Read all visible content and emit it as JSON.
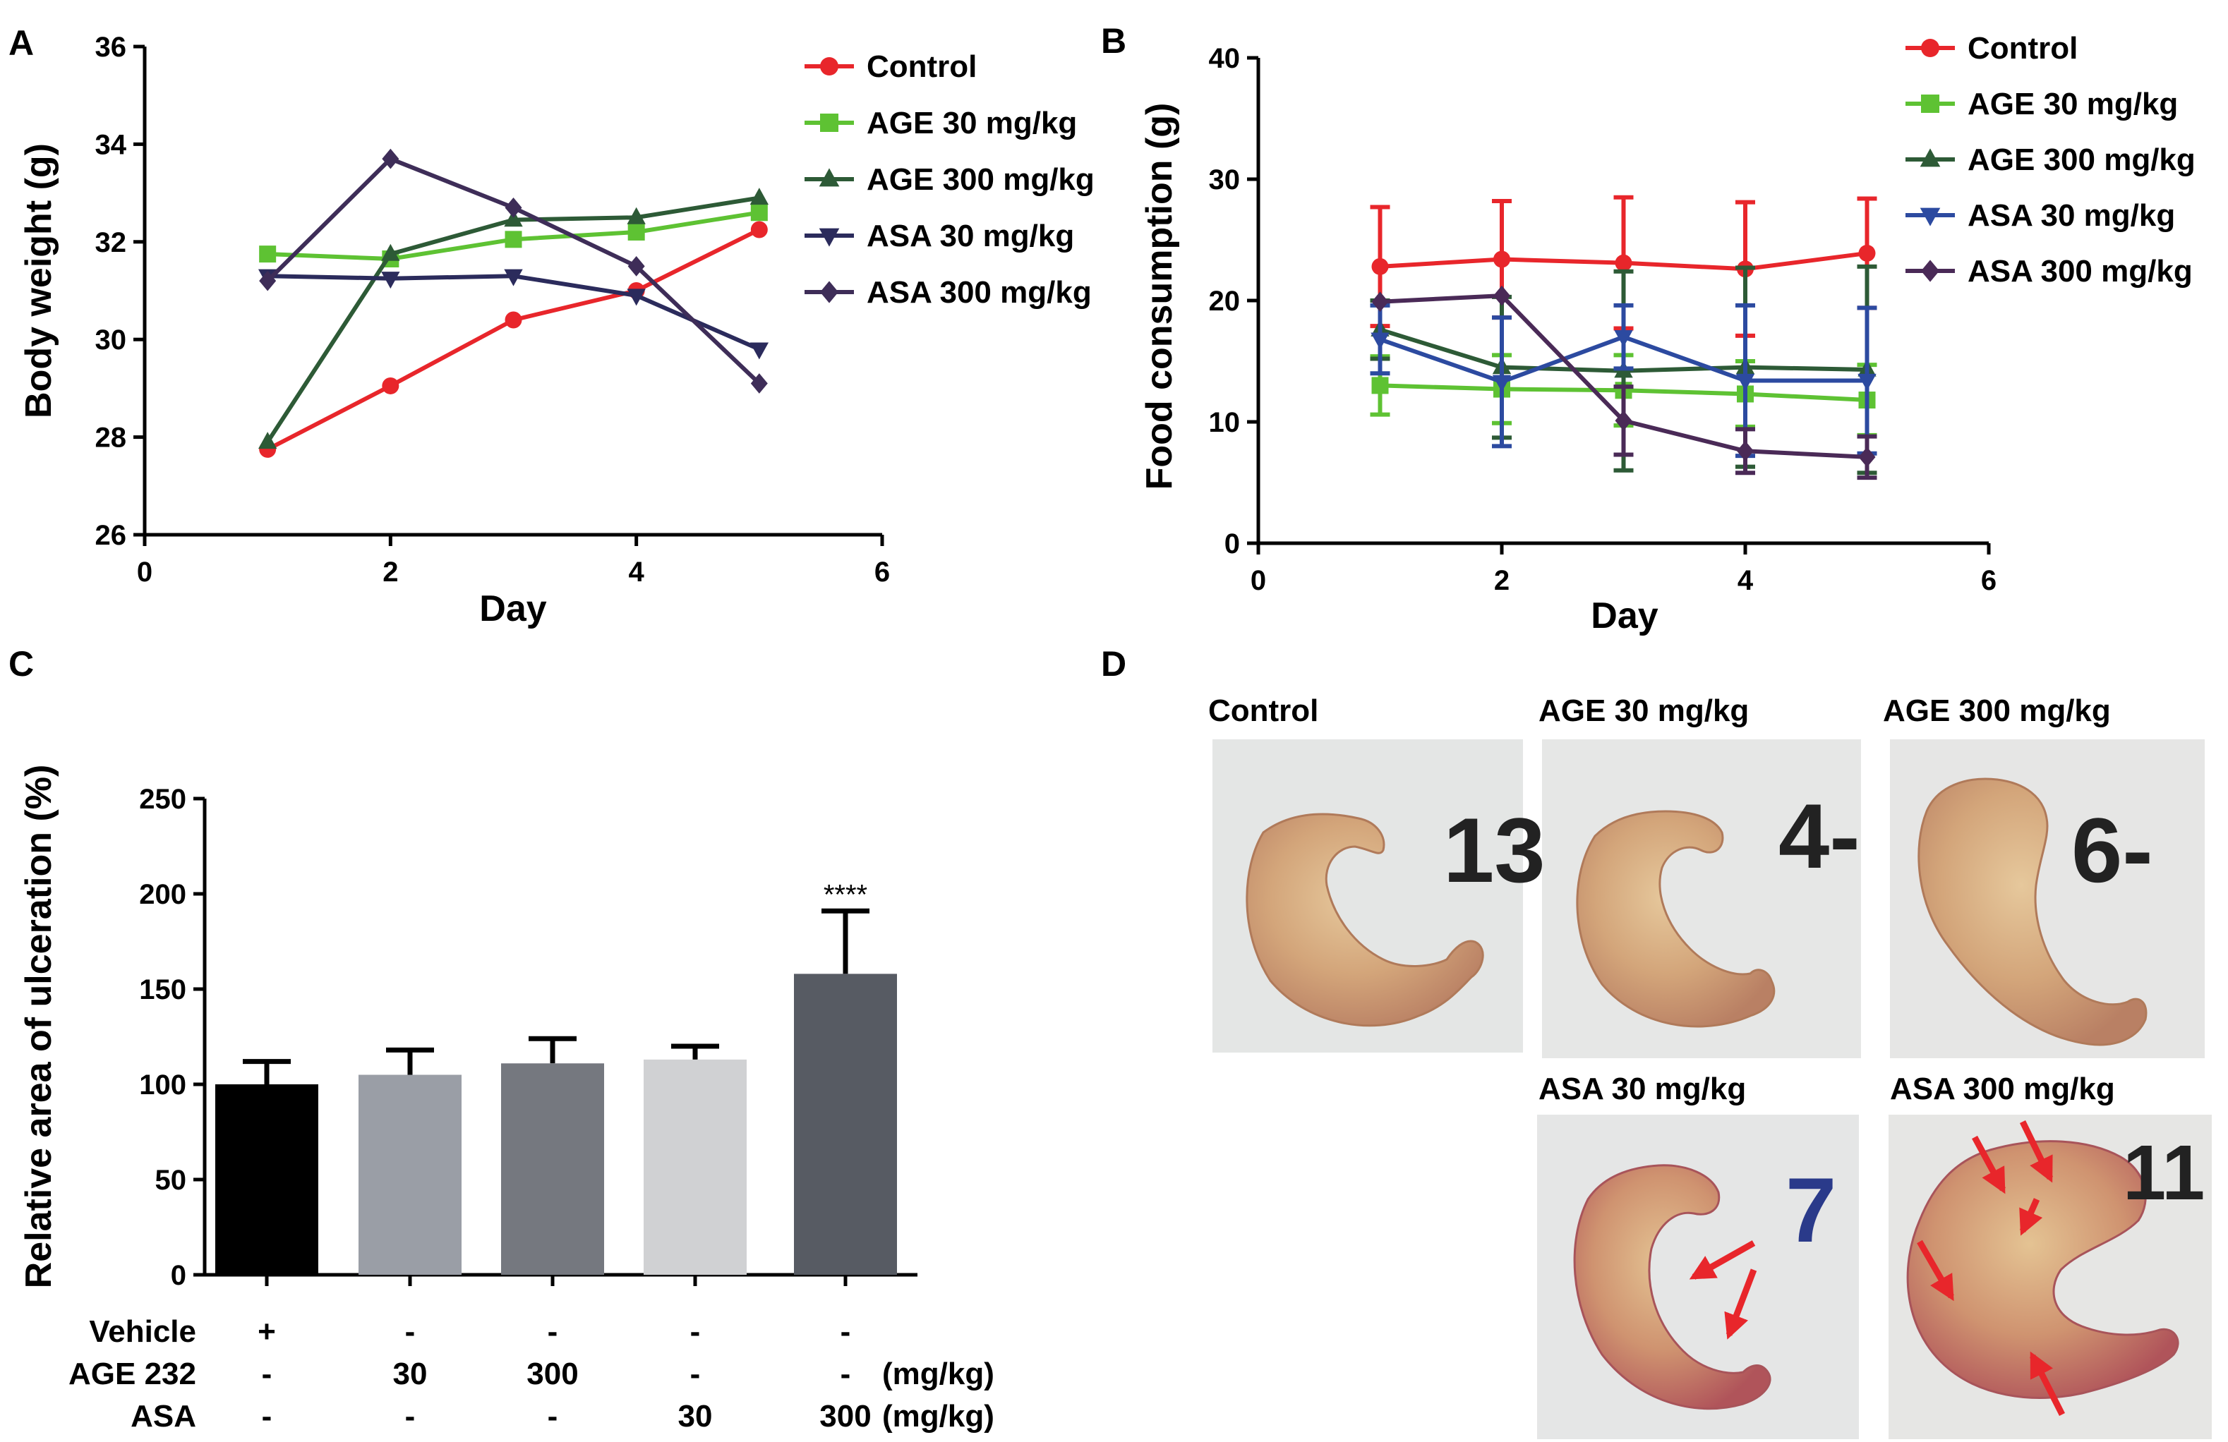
{
  "figure": {
    "panel_letters": [
      "A",
      "B",
      "C",
      "D"
    ]
  },
  "colors": {
    "Control": "#e8262b",
    "AGE 30 mg/kg": "#5ec233",
    "AGE 300 mg/kg": "#2d5a36",
    "ASA 30 mg/kg": "#2c4aa0",
    "ASA 300 mg/kg": "#4a2a57",
    "ASA 30 mg/kg (panel A)": "#2b2b5c",
    "ASA 300 mg/kg (panel A)": "#3e2d58",
    "bars": [
      "#000000",
      "#9a9ea6",
      "#75787f",
      "#d0d1d3",
      "#575b63"
    ],
    "arrow": "#e8262b"
  },
  "chart_data": [
    {
      "panel": "A",
      "type": "line",
      "ylabel": "Body weight (g)",
      "xlabel": "Day",
      "xlim": [
        0,
        6
      ],
      "ylim": [
        26,
        36
      ],
      "xticks": [
        "0",
        "2",
        "4",
        "6"
      ],
      "yticks": [
        "26",
        "28",
        "30",
        "32",
        "34",
        "36"
      ],
      "legend": "right",
      "x": [
        1,
        2,
        3,
        4,
        5
      ],
      "series": [
        {
          "name": "Control",
          "marker": "circle",
          "values": [
            27.75,
            29.05,
            30.4,
            31.0,
            32.25
          ]
        },
        {
          "name": "AGE 30 mg/kg",
          "marker": "square",
          "values": [
            31.75,
            31.65,
            32.05,
            32.2,
            32.6
          ]
        },
        {
          "name": "AGE 300 mg/kg",
          "marker": "triangle-up",
          "values": [
            27.9,
            31.75,
            32.45,
            32.5,
            32.9
          ]
        },
        {
          "name": "ASA 30 mg/kg",
          "marker": "triangle-down",
          "values": [
            31.3,
            31.25,
            31.3,
            30.9,
            29.8
          ]
        },
        {
          "name": "ASA 300 mg/kg",
          "marker": "diamond",
          "values": [
            31.2,
            33.7,
            32.7,
            31.5,
            29.1
          ]
        }
      ]
    },
    {
      "panel": "B",
      "type": "line",
      "ylabel": "Food consumption (g)",
      "xlabel": "Day",
      "xlim": [
        0,
        6
      ],
      "ylim": [
        0,
        40
      ],
      "xticks": [
        "0",
        "2",
        "4",
        "6"
      ],
      "yticks": [
        "0",
        "10",
        "20",
        "30",
        "40"
      ],
      "legend": "right",
      "x": [
        1,
        2,
        3,
        4,
        5
      ],
      "series": [
        {
          "name": "Control",
          "marker": "circle",
          "values": [
            22.8,
            23.4,
            23.1,
            22.6,
            23.9
          ],
          "errors": [
            4.9,
            4.8,
            5.4,
            5.5,
            4.5
          ]
        },
        {
          "name": "AGE 30 mg/kg",
          "marker": "square",
          "values": [
            13.0,
            12.7,
            12.6,
            12.3,
            11.8
          ],
          "errors": [
            2.4,
            2.8,
            2.9,
            2.7,
            2.9
          ]
        },
        {
          "name": "AGE 300 mg/kg",
          "marker": "triangle-up",
          "values": [
            17.6,
            14.5,
            14.2,
            14.5,
            14.3
          ],
          "errors": [
            2.4,
            5.8,
            8.2,
            8.2,
            8.5
          ]
        },
        {
          "name": "ASA 30 mg/kg",
          "marker": "triangle-down",
          "values": [
            16.8,
            13.3,
            17.0,
            13.4,
            13.4
          ],
          "errors": [
            2.8,
            5.3,
            2.6,
            6.2,
            6.0
          ]
        },
        {
          "name": "ASA 300 mg/kg",
          "marker": "diamond",
          "values": [
            19.9,
            20.4,
            10.1,
            7.6,
            7.1
          ],
          "errors": [
            0.0,
            0.0,
            2.8,
            1.8,
            1.7
          ]
        }
      ]
    },
    {
      "panel": "C",
      "type": "bar",
      "ylabel": "Relative area of ulceration (%)",
      "ylim": [
        0,
        250
      ],
      "yticks": [
        "0",
        "50",
        "100",
        "150",
        "200",
        "250"
      ],
      "values": [
        100,
        105,
        111,
        113,
        158
      ],
      "errors": [
        12,
        13,
        13,
        7,
        33
      ],
      "annotations": [
        "",
        "",
        "",
        "",
        "****"
      ],
      "treatment_table": {
        "rows": [
          {
            "label": "Vehicle",
            "cells": [
              "+",
              "-",
              "-",
              "-",
              "-"
            ],
            "unit": ""
          },
          {
            "label": "AGE 232",
            "cells": [
              "-",
              "30",
              "300",
              "-",
              "-"
            ],
            "unit": "(mg/kg)"
          },
          {
            "label": "ASA",
            "cells": [
              "-",
              "-",
              "-",
              "30",
              "300"
            ],
            "unit": "(mg/kg)"
          }
        ]
      }
    }
  ],
  "panel_d": {
    "photos": [
      {
        "label": "Control",
        "sample_id": "13",
        "arrows": 0
      },
      {
        "label": "AGE 30 mg/kg",
        "sample_id": "4-",
        "arrows": 0
      },
      {
        "label": "AGE 300 mg/kg",
        "sample_id": "6-",
        "arrows": 0
      },
      {
        "label": "ASA 30 mg/kg",
        "sample_id": "7",
        "arrows": 2
      },
      {
        "label": "ASA 300 mg/kg",
        "sample_id": "11",
        "arrows": 5
      }
    ]
  }
}
